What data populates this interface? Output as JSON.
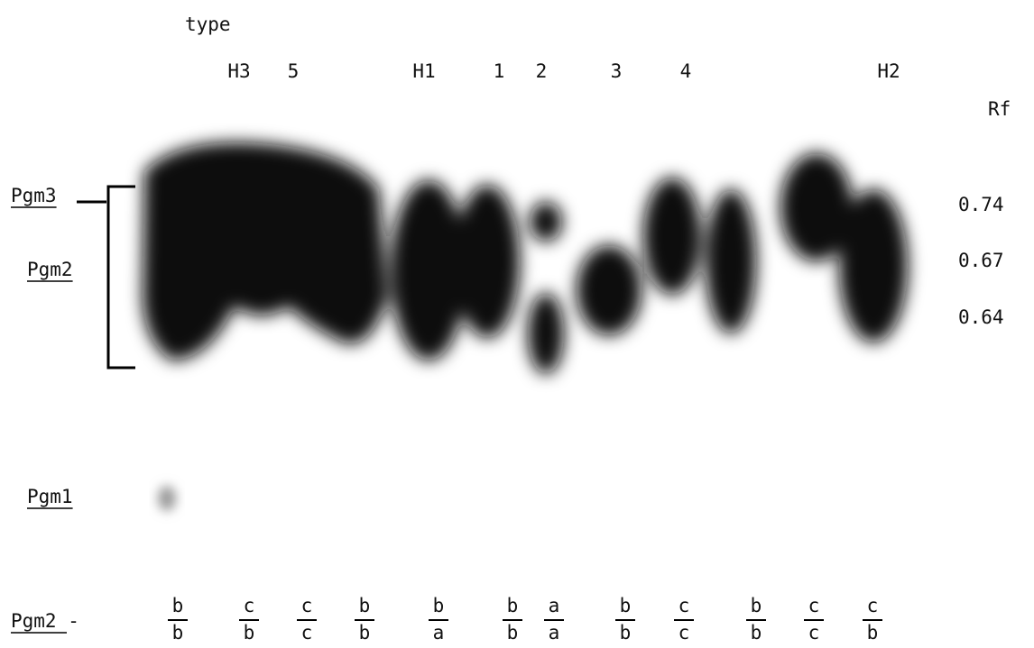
{
  "header": {
    "title": "type"
  },
  "lane_labels": [
    "H3",
    "5",
    "H1",
    "1",
    "2",
    "3",
    "4",
    "H2"
  ],
  "rf": {
    "title": "Rf",
    "values": [
      0.74,
      0.67,
      0.64
    ]
  },
  "loci": [
    "Pgm3",
    "Pgm2",
    "Pgm1"
  ],
  "genotypes": {
    "label": "Pgm2 -",
    "lanes": [
      [
        "b",
        "b"
      ],
      [
        "c",
        "b"
      ],
      [
        "c",
        "c"
      ],
      [
        "b",
        "b"
      ],
      [
        "b",
        "a"
      ],
      [
        "b",
        "b"
      ],
      [
        "a",
        "a"
      ],
      [
        "b",
        "b"
      ],
      [
        "c",
        "c"
      ],
      [
        "b",
        "b"
      ],
      [
        "c",
        "c"
      ],
      [
        "c",
        "b"
      ]
    ]
  }
}
